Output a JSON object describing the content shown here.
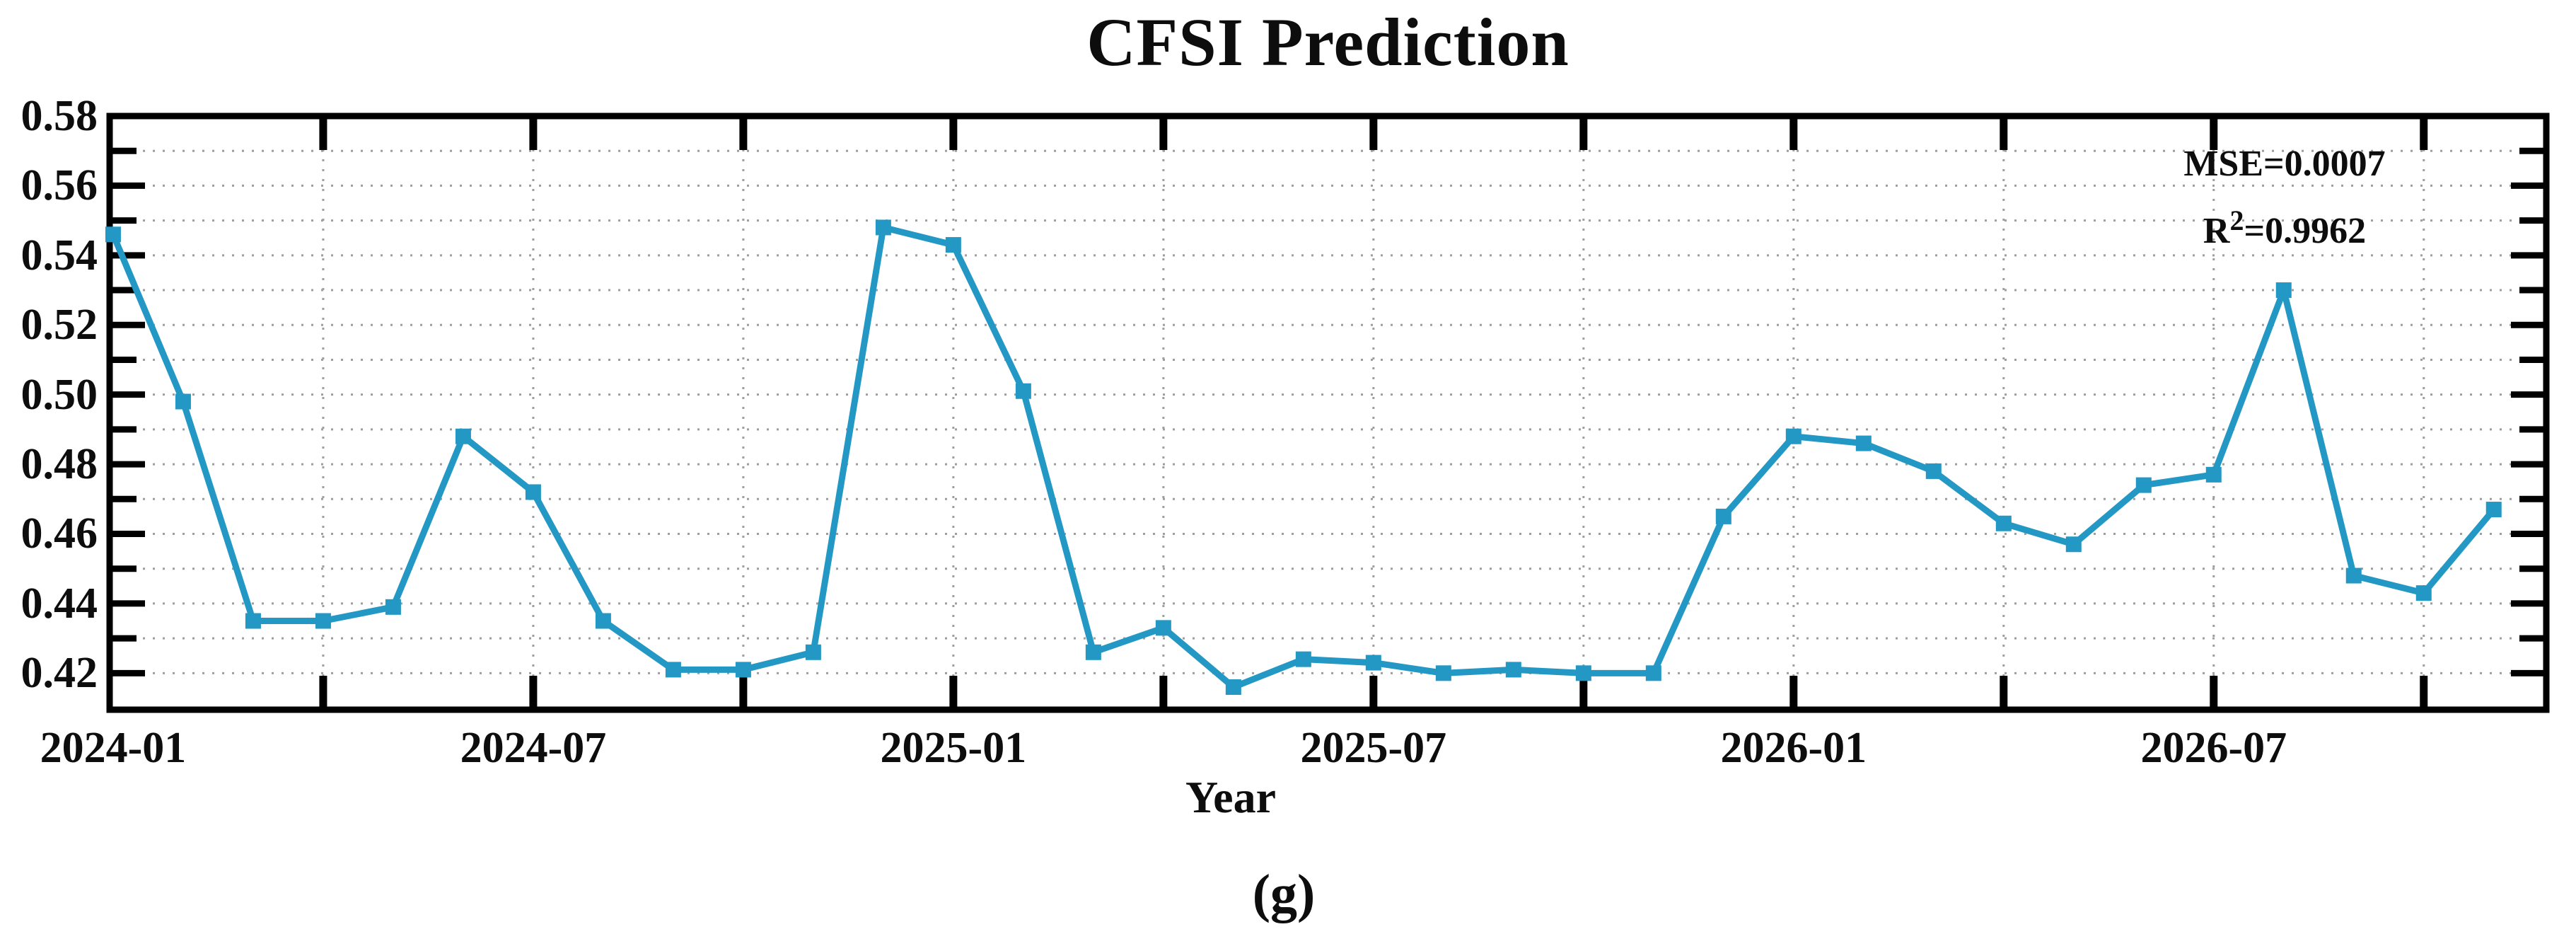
{
  "title": "CFSI Prediction",
  "axis": {
    "xlabel": "Year"
  },
  "annotation": {
    "mse": "MSE=0.0007",
    "r2_base": "R",
    "r2_exp": "2",
    "r2_value": "=0.9962"
  },
  "caption": "(g)",
  "chart_data": {
    "type": "line",
    "title": "CFSI Prediction",
    "xlabel": "Year",
    "ylabel": "",
    "series_name": "CFSI predicted values",
    "line_color": "#2398C4",
    "marker": "filled-square",
    "grid": "dotted gray, horizontal every 0.01, vertical every 3 months",
    "legend": "none",
    "annotations": [
      "MSE=0.0007",
      "R2=0.9962"
    ],
    "ylim": [
      0.4095,
      0.58
    ],
    "xlim_months": [
      -0.05,
      34.75
    ],
    "x": [
      "2024-01",
      "2024-02",
      "2024-03",
      "2024-04",
      "2024-05",
      "2024-06",
      "2024-07",
      "2024-08",
      "2024-09",
      "2024-10",
      "2024-11",
      "2024-12",
      "2025-01",
      "2025-02",
      "2025-03",
      "2025-04",
      "2025-05",
      "2025-06",
      "2025-07",
      "2025-08",
      "2025-09",
      "2025-10",
      "2025-11",
      "2025-12",
      "2026-01",
      "2026-02",
      "2026-03",
      "2026-04",
      "2026-05",
      "2026-06",
      "2026-07",
      "2026-08",
      "2026-09",
      "2026-10",
      "2026-11"
    ],
    "values": [
      0.546,
      0.498,
      0.435,
      0.435,
      0.439,
      0.488,
      0.472,
      0.435,
      0.421,
      0.421,
      0.426,
      0.548,
      0.543,
      0.501,
      0.426,
      0.433,
      0.416,
      0.424,
      0.423,
      0.42,
      0.421,
      0.42,
      0.42,
      0.465,
      0.488,
      0.486,
      0.478,
      0.463,
      0.457,
      0.474,
      0.477,
      0.53,
      0.448,
      0.443,
      0.467
    ],
    "y_ticks": [
      {
        "value": 0.58,
        "label": "0.58"
      },
      {
        "value": 0.56,
        "label": "0.56"
      },
      {
        "value": 0.54,
        "label": "0.54"
      },
      {
        "value": 0.52,
        "label": "0.52"
      },
      {
        "value": 0.5,
        "label": "0.50"
      },
      {
        "value": 0.48,
        "label": "0.48"
      },
      {
        "value": 0.46,
        "label": "0.46"
      },
      {
        "value": 0.44,
        "label": "0.44"
      },
      {
        "value": 0.42,
        "label": "0.42"
      }
    ],
    "y_minor_step": 0.01,
    "x_major_ticks": [
      {
        "month_index": 0,
        "label": "2024-01"
      },
      {
        "month_index": 6,
        "label": "2024-07"
      },
      {
        "month_index": 12,
        "label": "2025-01"
      },
      {
        "month_index": 18,
        "label": "2025-07"
      },
      {
        "month_index": 24,
        "label": "2026-01"
      },
      {
        "month_index": 30,
        "label": "2026-07"
      }
    ],
    "x_minor_tick_step_months": 3
  }
}
